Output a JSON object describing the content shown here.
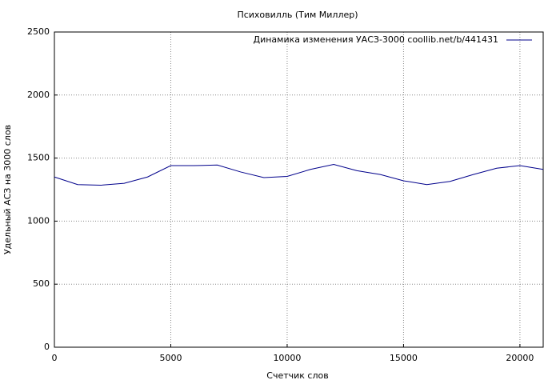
{
  "chart_data": {
    "type": "line",
    "title": "Психовилль (Тим Миллер)",
    "x_label": "Счетчик слов",
    "y_label": "Удельный АСЗ на 3000 слов",
    "x": [
      0,
      1000,
      2000,
      3000,
      4000,
      5000,
      6000,
      7000,
      8000,
      9000,
      10000,
      11000,
      12000,
      13000,
      14000,
      15000,
      16000,
      17000,
      18000,
      19000,
      20000,
      21000
    ],
    "series": [
      {
        "name": "Динамика изменения УАСЗ-3000  coollib.net/b/441431",
        "color": "#00008b",
        "values": [
          1350,
          1290,
          1285,
          1300,
          1350,
          1440,
          1440,
          1445,
          1390,
          1345,
          1355,
          1410,
          1450,
          1400,
          1370,
          1320,
          1290,
          1315,
          1370,
          1420,
          1440,
          1410
        ]
      }
    ],
    "xlim": [
      0,
      21000
    ],
    "xticks": [
      0,
      5000,
      10000,
      15000,
      20000
    ],
    "ylim": [
      0,
      2500
    ],
    "yticks": [
      0,
      500,
      1000,
      1500,
      2000,
      2500
    ],
    "grid": true,
    "legend": "top-right"
  }
}
